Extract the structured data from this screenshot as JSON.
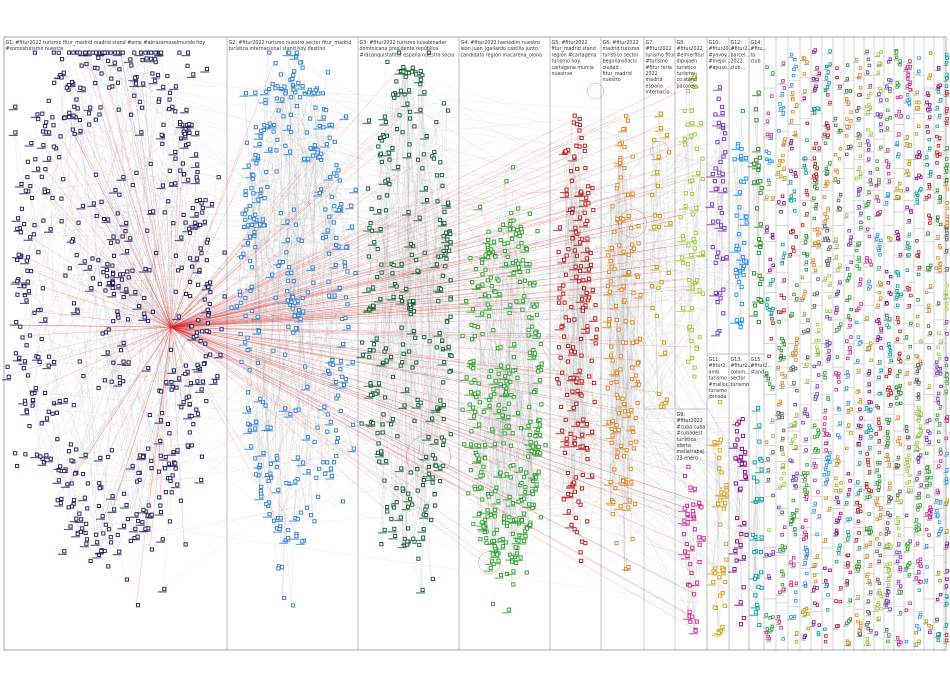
{
  "graph": {
    "groups": [
      {
        "id": "G1",
        "label_lines": [
          "G1: #fitur2022 turismo fitur_madrid madrid stand #eme #abrazamoselmundo hoy",
          "#somosturismo nuestra"
        ],
        "color": "#1a1a5e"
      },
      {
        "id": "G2",
        "label_lines": [
          "G2: #fitur2022 turismo nuestro sector fitur_madrid",
          "turística internacional stand hoy destino"
        ],
        "color": "#2a7fd4"
      },
      {
        "id": "G3",
        "label_lines": [
          "G3: #fitur2022 turismo luisabinader",
          "dominicana presidente república",
          "#rdconquistafitur españa nuestro socio"
        ],
        "color": "#0e5a2e"
      },
      {
        "id": "G4",
        "label_lines": [
          "G4: #fitur2022 lvenedim nuestro",
          "león juan_jgallardo castilla junto",
          "candidato región macarena_olona"
        ],
        "color": "#2ca02c"
      },
      {
        "id": "G5",
        "label_lines": [
          "G5: #fitur2022",
          "fitur_madrid stand",
          "región #cartagena",
          "turismo hoy",
          "cartagena murcia",
          "nuestras"
        ],
        "color": "#b81414"
      },
      {
        "id": "G6",
        "label_lines": [
          "G6: #fitur2022",
          "madrid turismo",
          "turístico sector",
          "begoñavillacis",
          "ciudad",
          "fitur_madrid",
          "nuestro"
        ],
        "color": "#e6821e"
      },
      {
        "id": "G7",
        "label_lines": [
          "G7:",
          "#fitur2022",
          "turismo fitur",
          "#turismo",
          "#fitur feria",
          "2022",
          "madrid",
          "españa",
          "internacio..."
        ],
        "color": "#c89600"
      },
      {
        "id": "G8",
        "label_lines": [
          "G8:",
          "#fitur2022",
          "#elmerfitur",
          "dipujaen",
          "turístico",
          "turismo",
          "co stand",
          "pacorey..."
        ],
        "color": "#9acd32"
      },
      {
        "id": "G9",
        "label_lines": [
          "G9:",
          "#fitur2022",
          "#cuba cuba",
          "#cubadest",
          "turística",
          "oferta",
          "meliatrabaj",
          "23 enero"
        ],
        "color": "#d02090"
      },
      {
        "id": "G10",
        "label_lines": [
          "G10:",
          "#fitur20...",
          "#yovoy...",
          "#mejor...",
          "#ayuso..."
        ],
        "color": "#7b2fbf"
      },
      {
        "id": "G11",
        "label_lines": [
          "G11:",
          "#fitur2...",
          "amb",
          "turismo",
          "#mallor...",
          "turismo",
          "jornada"
        ],
        "color": "#d4a017"
      },
      {
        "id": "G12",
        "label_lines": [
          "G12:",
          "#fitur2...",
          "barcel...",
          "2022",
          "club..."
        ],
        "color": "#1e90ff"
      },
      {
        "id": "G13",
        "label_lines": [
          "G13:",
          "#fitur2...",
          "colom...",
          "sector",
          "turismo"
        ],
        "color": "#8b008b"
      },
      {
        "id": "G14",
        "label_lines": [
          "G14:",
          "#fitu...",
          "to",
          "club"
        ],
        "color": "#228b22"
      },
      {
        "id": "G15",
        "label_lines": [
          "G15:",
          "#fitur2...",
          "stand"
        ],
        "color": "#00a0a0"
      }
    ],
    "small_group_palette": [
      "#7b2fbf",
      "#2ca02c",
      "#d02090",
      "#1e90ff",
      "#c89600",
      "#8b008b",
      "#00a0a0",
      "#b81414",
      "#228b22",
      "#e6821e",
      "#555555",
      "#9acd32"
    ],
    "edge_colors": {
      "between": "#d62728",
      "within": "#9a9a9a"
    }
  }
}
